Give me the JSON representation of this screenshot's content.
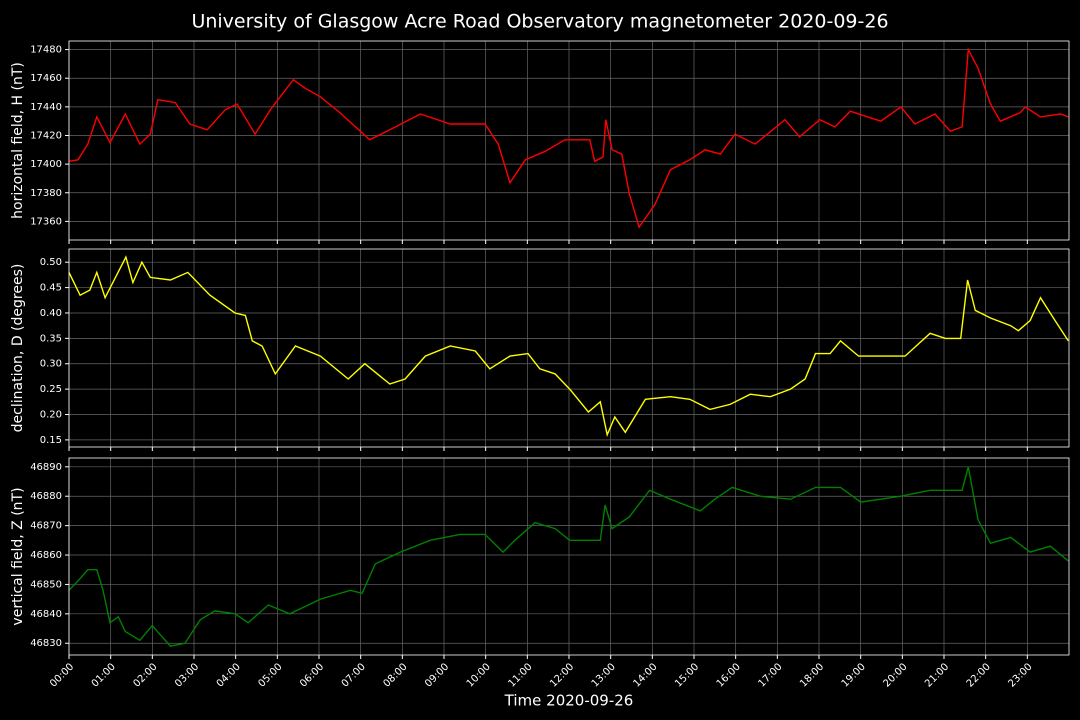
{
  "title": "University of Glasgow Acre Road Observatory magnetometer 2020-09-26",
  "chart_data": [
    {
      "type": "line",
      "ylabel": "horizontal field, H (nT)",
      "color": "#ff0000",
      "grid": true,
      "xlim": [
        "00:00",
        "24:00"
      ],
      "xticks": [
        "00:00",
        "01:00",
        "02:00",
        "03:00",
        "04:00",
        "05:00",
        "06:00",
        "07:00",
        "08:00",
        "09:00",
        "10:00",
        "11:00",
        "12:00",
        "13:00",
        "14:00",
        "15:00",
        "16:00",
        "17:00",
        "18:00",
        "19:00",
        "20:00",
        "21:00",
        "22:00",
        "23:00"
      ],
      "ylim": [
        17347,
        17486
      ],
      "yticks": [
        17360,
        17380,
        17400,
        17420,
        17440,
        17460,
        17480
      ],
      "x": [
        "00:00",
        "00:13",
        "00:27",
        "00:40",
        "00:59",
        "01:21",
        "01:42",
        "01:57",
        "02:08",
        "02:33",
        "02:54",
        "03:19",
        "03:45",
        "04:02",
        "04:28",
        "04:50",
        "05:23",
        "05:40",
        "06:02",
        "06:30",
        "07:13",
        "07:42",
        "08:26",
        "09:09",
        "09:59",
        "10:18",
        "10:35",
        "10:57",
        "11:26",
        "11:54",
        "12:30",
        "12:37",
        "12:49",
        "12:53",
        "13:02",
        "13:16",
        "13:27",
        "13:41",
        "14:04",
        "14:26",
        "14:54",
        "15:16",
        "15:38",
        "15:59",
        "16:28",
        "17:11",
        "17:32",
        "18:01",
        "18:23",
        "18:45",
        "19:29",
        "19:58",
        "20:18",
        "20:47",
        "21:09",
        "21:26",
        "21:35",
        "21:49",
        "22:07",
        "22:21",
        "22:50",
        "22:57",
        "23:19",
        "23:48",
        "23:59"
      ],
      "values": [
        17402,
        17403,
        17414,
        17433,
        17415,
        17435,
        17414,
        17421,
        17445,
        17443,
        17428,
        17424,
        17438,
        17442,
        17421,
        17438,
        17459,
        17453,
        17447,
        17436,
        17417,
        17424,
        17435,
        17428,
        17428,
        17414,
        17387,
        17403,
        17409,
        17417,
        17417,
        17402,
        17405,
        17431,
        17410,
        17407,
        17379,
        17356,
        17372,
        17396,
        17403,
        17410,
        17407,
        17421,
        17414,
        17431,
        17419,
        17431,
        17426,
        17437,
        17430,
        17440,
        17428,
        17435,
        17423,
        17426,
        17480,
        17467,
        17442,
        17430,
        17436,
        17440,
        17433,
        17435,
        17433
      ]
    },
    {
      "type": "line",
      "ylabel": "declination, D (degrees)",
      "color": "#ffff00",
      "grid": true,
      "xlim": [
        "00:00",
        "24:00"
      ],
      "xticks": [
        "00:00",
        "01:00",
        "02:00",
        "03:00",
        "04:00",
        "05:00",
        "06:00",
        "07:00",
        "08:00",
        "09:00",
        "10:00",
        "11:00",
        "12:00",
        "13:00",
        "14:00",
        "15:00",
        "16:00",
        "17:00",
        "18:00",
        "19:00",
        "20:00",
        "21:00",
        "22:00",
        "23:00"
      ],
      "ylim": [
        0.136,
        0.526
      ],
      "yticks": [
        0.15,
        {
          "value": 0.2,
          "label": "0.20"
        },
        0.25,
        {
          "value": 0.3,
          "label": "0.30"
        },
        0.35,
        {
          "value": 0.4,
          "label": "0.40"
        },
        0.45,
        {
          "value": 0.5,
          "label": "0.50"
        }
      ],
      "x": [
        "00:00",
        "00:16",
        "00:30",
        "00:40",
        "00:52",
        "01:22",
        "01:32",
        "01:45",
        "01:57",
        "02:26",
        "02:51",
        "03:23",
        "03:59",
        "04:14",
        "04:24",
        "04:38",
        "04:57",
        "05:26",
        "06:02",
        "06:42",
        "07:06",
        "07:42",
        "08:04",
        "08:33",
        "09:09",
        "09:45",
        "10:06",
        "10:35",
        "11:01",
        "11:18",
        "11:40",
        "12:01",
        "12:28",
        "12:45",
        "12:55",
        "13:06",
        "13:21",
        "13:50",
        "14:26",
        "14:54",
        "15:23",
        "15:52",
        "16:21",
        "16:50",
        "17:19",
        "17:40",
        "17:55",
        "18:16",
        "18:31",
        "18:57",
        "19:29",
        "20:04",
        "20:40",
        "21:02",
        "21:24",
        "21:34",
        "21:45",
        "22:07",
        "22:36",
        "22:47",
        "23:04",
        "23:19",
        "23:40",
        "23:59"
      ],
      "values": [
        0.48,
        0.435,
        0.445,
        0.48,
        0.43,
        0.51,
        0.46,
        0.5,
        0.47,
        0.465,
        0.48,
        0.435,
        0.4,
        0.395,
        0.345,
        0.335,
        0.28,
        0.335,
        0.315,
        0.27,
        0.3,
        0.26,
        0.27,
        0.315,
        0.335,
        0.325,
        0.29,
        0.315,
        0.32,
        0.29,
        0.28,
        0.25,
        0.205,
        0.225,
        0.16,
        0.195,
        0.165,
        0.23,
        0.235,
        0.23,
        0.21,
        0.22,
        0.24,
        0.235,
        0.25,
        0.27,
        0.32,
        0.32,
        0.345,
        0.315,
        0.315,
        0.315,
        0.36,
        0.35,
        0.35,
        0.465,
        0.405,
        0.39,
        0.375,
        0.365,
        0.385,
        0.43,
        0.385,
        0.345
      ]
    },
    {
      "type": "line",
      "ylabel": "vertical field, Z (nT)",
      "xlabel": "Time 2020-09-26",
      "color": "#008000",
      "grid": true,
      "xlim": [
        "00:00",
        "24:00"
      ],
      "xticks": [
        "00:00",
        "01:00",
        "02:00",
        "03:00",
        "04:00",
        "05:00",
        "06:00",
        "07:00",
        "08:00",
        "09:00",
        "10:00",
        "11:00",
        "12:00",
        "13:00",
        "14:00",
        "15:00",
        "16:00",
        "17:00",
        "18:00",
        "19:00",
        "20:00",
        "21:00",
        "22:00",
        "23:00"
      ],
      "ylim": [
        46826,
        46893
      ],
      "yticks": [
        46830,
        46840,
        46850,
        46860,
        46870,
        46880,
        46890
      ],
      "x": [
        "00:00",
        "00:16",
        "00:27",
        "00:40",
        "00:49",
        "00:59",
        "01:11",
        "01:21",
        "01:42",
        "02:00",
        "02:11",
        "02:26",
        "02:47",
        "03:09",
        "03:30",
        "03:59",
        "04:18",
        "04:47",
        "05:18",
        "06:02",
        "06:45",
        "07:02",
        "07:21",
        "07:57",
        "08:40",
        "09:23",
        "09:59",
        "10:25",
        "10:42",
        "11:11",
        "11:40",
        "12:01",
        "12:45",
        "12:52",
        "13:02",
        "13:27",
        "13:56",
        "14:26",
        "15:09",
        "15:30",
        "15:55",
        "16:35",
        "17:19",
        "17:55",
        "18:31",
        "19:00",
        "19:58",
        "20:40",
        "21:16",
        "21:26",
        "21:35",
        "21:49",
        "22:07",
        "22:36",
        "23:04",
        "23:33",
        "23:59"
      ],
      "values": [
        46848,
        46852,
        46855,
        46855,
        46848,
        46837,
        46839,
        46834,
        46831,
        46836,
        46833,
        46829,
        46830,
        46838,
        46841,
        46840,
        46837,
        46843,
        46840,
        46845,
        46848,
        46847,
        46857,
        46861,
        46865,
        46867,
        46867,
        46861,
        46865,
        46871,
        46869,
        46865,
        46865,
        46877,
        46869,
        46873,
        46882,
        46879,
        46875,
        46879,
        46883,
        46880,
        46879,
        46883,
        46883,
        46878,
        46880,
        46882,
        46882,
        46882,
        46890,
        46872,
        46864,
        46866,
        46861,
        46863,
        46858
      ]
    }
  ]
}
